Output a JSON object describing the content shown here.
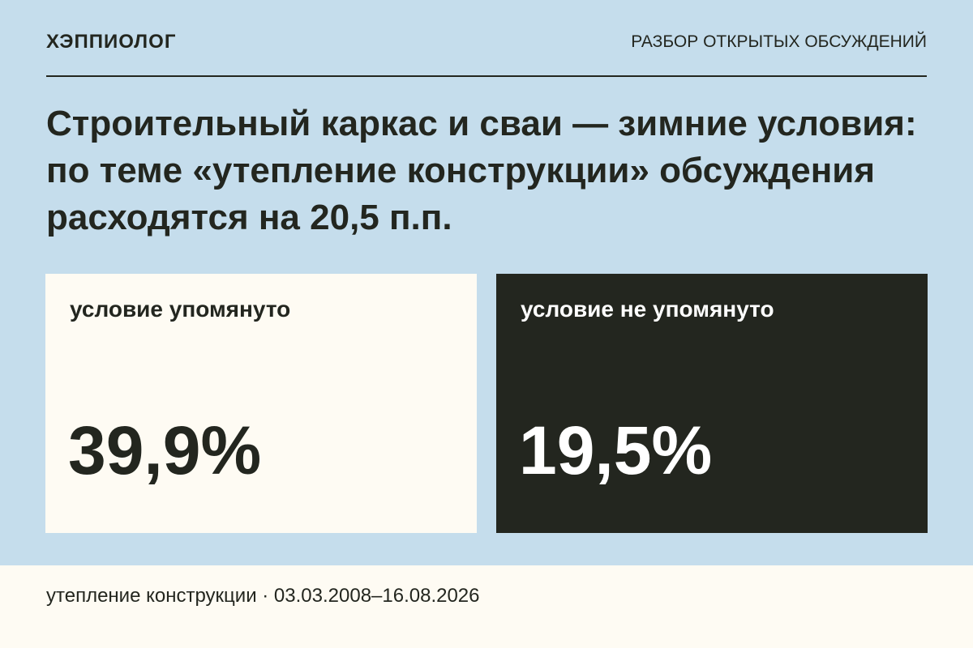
{
  "header": {
    "brand": "ХЭППИОЛОГ",
    "section": "РАЗБОР ОТКРЫТЫХ ОБСУЖДЕНИЙ"
  },
  "title": "Строительный каркас и сваи — зимние условия: по теме «утепление конструкции» обсуждения расходятся на 20,5 п.п.",
  "cards": [
    {
      "label": "условие упомянуто",
      "value": "39,9%"
    },
    {
      "label": "условие не упомянуто",
      "value": "19,5%"
    }
  ],
  "footer": {
    "topic": "утепление конструкции",
    "period": "03.03.2008–16.08.2026"
  }
}
